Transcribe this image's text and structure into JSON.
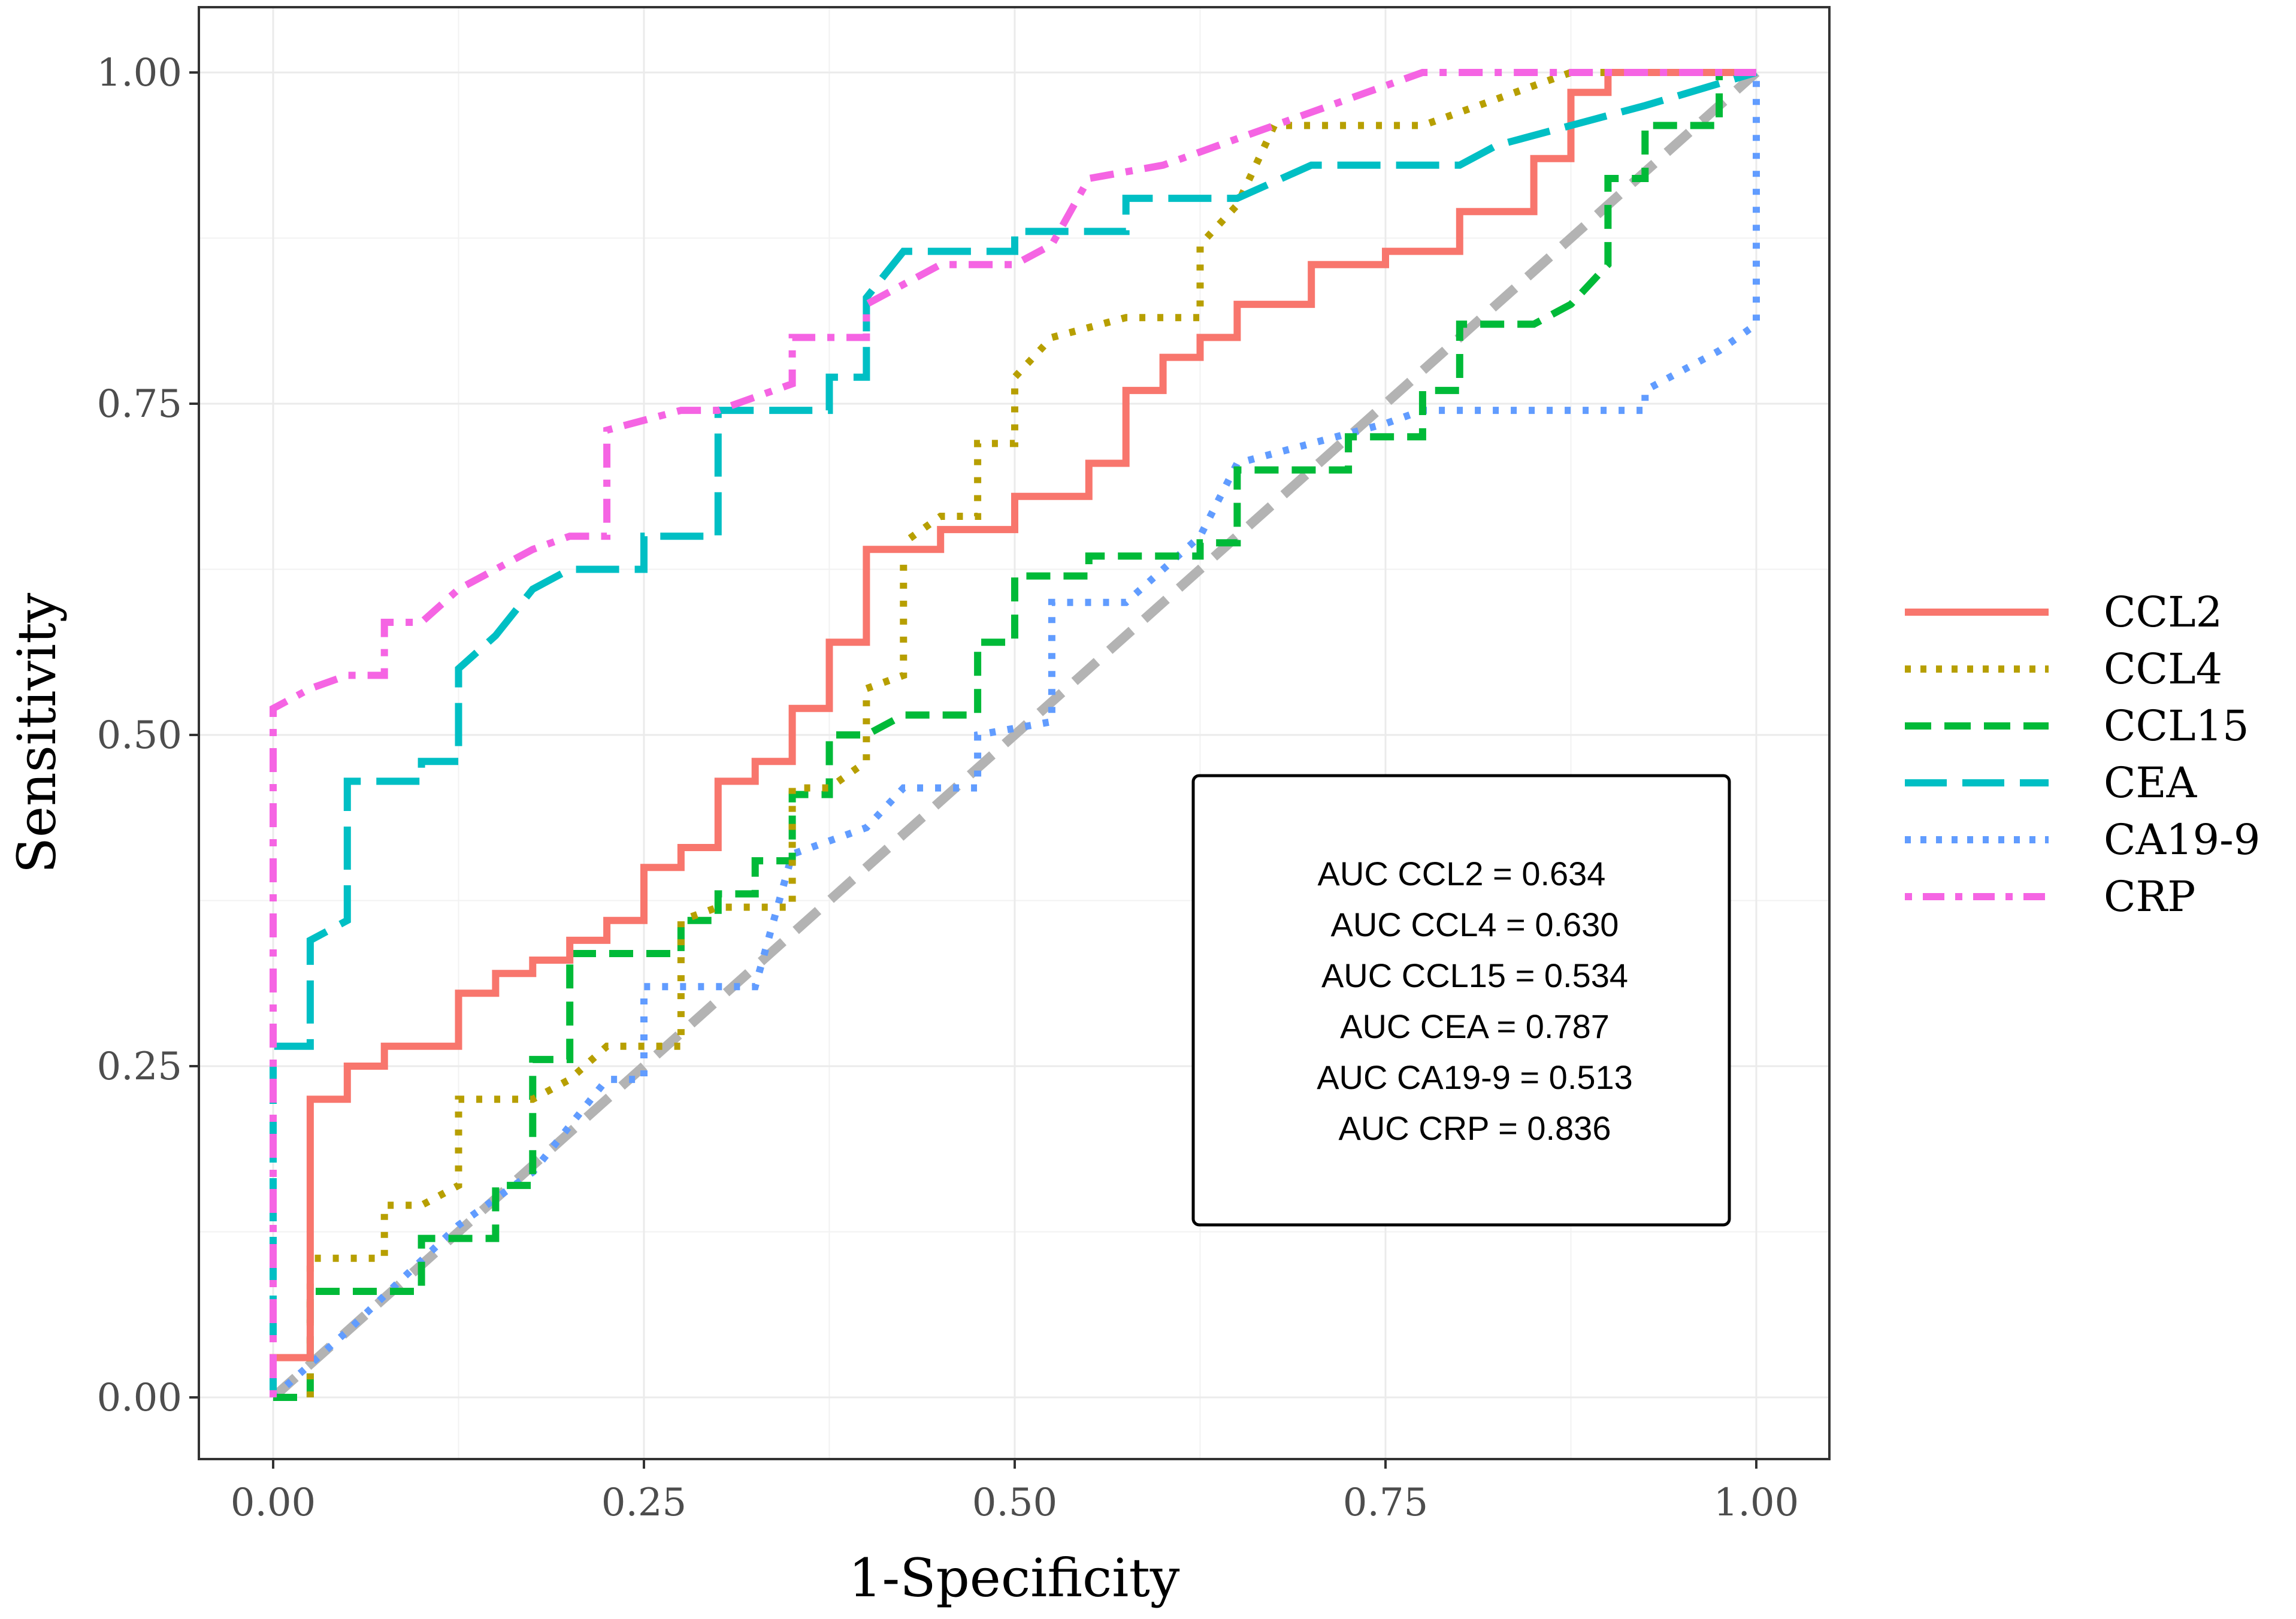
{
  "chart_data": {
    "type": "line",
    "title": "",
    "xlabel": "1-Specificity",
    "ylabel": "Sensitivity",
    "xlim": [
      -0.1,
      1.1
    ],
    "ylim": [
      -0.1,
      1.1
    ],
    "xticks": [
      0,
      0.25,
      0.5,
      0.75,
      1
    ],
    "yticks": [
      0,
      0.25,
      0.5,
      0.75,
      1
    ],
    "xtick_labels": [
      "0.00",
      "0.25",
      "0.50",
      "0.75",
      "1.00"
    ],
    "ytick_labels": [
      "0.00",
      "0.25",
      "0.50",
      "0.75",
      "1.00"
    ],
    "grid": true,
    "legend_position": "right",
    "reference_line": {
      "from": [
        0,
        0
      ],
      "to": [
        1,
        1
      ],
      "color": "#b3b3b3",
      "style": "dashed"
    },
    "series": [
      {
        "name": "CCL2",
        "color": "#F8766D",
        "style": "solid",
        "points": [
          [
            0,
            0
          ],
          [
            0,
            0.03
          ],
          [
            0.025,
            0.03
          ],
          [
            0.025,
            0.225
          ],
          [
            0.05,
            0.225
          ],
          [
            0.05,
            0.25
          ],
          [
            0.075,
            0.25
          ],
          [
            0.075,
            0.265
          ],
          [
            0.125,
            0.265
          ],
          [
            0.125,
            0.305
          ],
          [
            0.15,
            0.305
          ],
          [
            0.15,
            0.32
          ],
          [
            0.175,
            0.32
          ],
          [
            0.175,
            0.33
          ],
          [
            0.2,
            0.33
          ],
          [
            0.2,
            0.345
          ],
          [
            0.225,
            0.345
          ],
          [
            0.225,
            0.36
          ],
          [
            0.25,
            0.36
          ],
          [
            0.25,
            0.4
          ],
          [
            0.275,
            0.4
          ],
          [
            0.275,
            0.415
          ],
          [
            0.3,
            0.415
          ],
          [
            0.3,
            0.465
          ],
          [
            0.325,
            0.465
          ],
          [
            0.325,
            0.48
          ],
          [
            0.35,
            0.48
          ],
          [
            0.35,
            0.52
          ],
          [
            0.375,
            0.52
          ],
          [
            0.375,
            0.57
          ],
          [
            0.4,
            0.57
          ],
          [
            0.4,
            0.64
          ],
          [
            0.45,
            0.64
          ],
          [
            0.45,
            0.655
          ],
          [
            0.5,
            0.655
          ],
          [
            0.5,
            0.68
          ],
          [
            0.55,
            0.68
          ],
          [
            0.55,
            0.705
          ],
          [
            0.575,
            0.705
          ],
          [
            0.575,
            0.76
          ],
          [
            0.6,
            0.76
          ],
          [
            0.6,
            0.785
          ],
          [
            0.625,
            0.785
          ],
          [
            0.625,
            0.8
          ],
          [
            0.65,
            0.8
          ],
          [
            0.65,
            0.825
          ],
          [
            0.7,
            0.825
          ],
          [
            0.7,
            0.855
          ],
          [
            0.75,
            0.855
          ],
          [
            0.75,
            0.865
          ],
          [
            0.8,
            0.865
          ],
          [
            0.8,
            0.895
          ],
          [
            0.85,
            0.895
          ],
          [
            0.85,
            0.935
          ],
          [
            0.875,
            0.935
          ],
          [
            0.875,
            0.985
          ],
          [
            0.9,
            0.985
          ],
          [
            0.9,
            1
          ],
          [
            1,
            1
          ]
        ]
      },
      {
        "name": "CCL4",
        "color": "#B79F00",
        "style": "dotted",
        "points": [
          [
            0.025,
            0
          ],
          [
            0.025,
            0.105
          ],
          [
            0.075,
            0.105
          ],
          [
            0.075,
            0.145
          ],
          [
            0.1,
            0.145
          ],
          [
            0.125,
            0.16
          ],
          [
            0.125,
            0.225
          ],
          [
            0.175,
            0.225
          ],
          [
            0.2,
            0.24
          ],
          [
            0.225,
            0.265
          ],
          [
            0.275,
            0.265
          ],
          [
            0.275,
            0.36
          ],
          [
            0.3,
            0.37
          ],
          [
            0.35,
            0.37
          ],
          [
            0.35,
            0.46
          ],
          [
            0.375,
            0.46
          ],
          [
            0.4,
            0.48
          ],
          [
            0.4,
            0.535
          ],
          [
            0.425,
            0.545
          ],
          [
            0.425,
            0.645
          ],
          [
            0.45,
            0.665
          ],
          [
            0.475,
            0.665
          ],
          [
            0.475,
            0.72
          ],
          [
            0.5,
            0.72
          ],
          [
            0.5,
            0.77
          ],
          [
            0.525,
            0.8
          ],
          [
            0.575,
            0.815
          ],
          [
            0.625,
            0.815
          ],
          [
            0.625,
            0.87
          ],
          [
            0.65,
            0.9
          ],
          [
            0.675,
            0.96
          ],
          [
            0.775,
            0.96
          ],
          [
            0.875,
            1
          ],
          [
            1,
            1
          ]
        ]
      },
      {
        "name": "CCL15",
        "color": "#00BA38",
        "style": "dashed",
        "points": [
          [
            0,
            0
          ],
          [
            0.025,
            0
          ],
          [
            0.025,
            0.08
          ],
          [
            0.1,
            0.08
          ],
          [
            0.1,
            0.12
          ],
          [
            0.15,
            0.12
          ],
          [
            0.15,
            0.16
          ],
          [
            0.175,
            0.16
          ],
          [
            0.175,
            0.255
          ],
          [
            0.2,
            0.255
          ],
          [
            0.2,
            0.335
          ],
          [
            0.275,
            0.335
          ],
          [
            0.275,
            0.36
          ],
          [
            0.3,
            0.36
          ],
          [
            0.3,
            0.38
          ],
          [
            0.325,
            0.38
          ],
          [
            0.325,
            0.405
          ],
          [
            0.35,
            0.405
          ],
          [
            0.35,
            0.455
          ],
          [
            0.375,
            0.455
          ],
          [
            0.375,
            0.5
          ],
          [
            0.4,
            0.5
          ],
          [
            0.425,
            0.515
          ],
          [
            0.475,
            0.515
          ],
          [
            0.475,
            0.57
          ],
          [
            0.5,
            0.57
          ],
          [
            0.5,
            0.62
          ],
          [
            0.55,
            0.62
          ],
          [
            0.55,
            0.635
          ],
          [
            0.625,
            0.635
          ],
          [
            0.625,
            0.645
          ],
          [
            0.65,
            0.645
          ],
          [
            0.65,
            0.7
          ],
          [
            0.725,
            0.7
          ],
          [
            0.725,
            0.725
          ],
          [
            0.775,
            0.725
          ],
          [
            0.775,
            0.76
          ],
          [
            0.8,
            0.76
          ],
          [
            0.8,
            0.81
          ],
          [
            0.85,
            0.81
          ],
          [
            0.875,
            0.825
          ],
          [
            0.9,
            0.855
          ],
          [
            0.9,
            0.92
          ],
          [
            0.925,
            0.92
          ],
          [
            0.925,
            0.96
          ],
          [
            0.975,
            0.96
          ],
          [
            0.975,
            1
          ],
          [
            1,
            1
          ]
        ]
      },
      {
        "name": "CEA",
        "color": "#00BFC4",
        "style": "longdash",
        "points": [
          [
            0,
            0
          ],
          [
            0,
            0.265
          ],
          [
            0.025,
            0.265
          ],
          [
            0.025,
            0.345
          ],
          [
            0.05,
            0.36
          ],
          [
            0.05,
            0.465
          ],
          [
            0.1,
            0.465
          ],
          [
            0.1,
            0.48
          ],
          [
            0.125,
            0.48
          ],
          [
            0.125,
            0.55
          ],
          [
            0.15,
            0.575
          ],
          [
            0.175,
            0.61
          ],
          [
            0.2,
            0.625
          ],
          [
            0.25,
            0.625
          ],
          [
            0.25,
            0.65
          ],
          [
            0.3,
            0.65
          ],
          [
            0.3,
            0.745
          ],
          [
            0.375,
            0.745
          ],
          [
            0.375,
            0.77
          ],
          [
            0.4,
            0.77
          ],
          [
            0.4,
            0.83
          ],
          [
            0.425,
            0.865
          ],
          [
            0.5,
            0.865
          ],
          [
            0.5,
            0.88
          ],
          [
            0.575,
            0.88
          ],
          [
            0.575,
            0.905
          ],
          [
            0.65,
            0.905
          ],
          [
            0.7,
            0.93
          ],
          [
            0.8,
            0.93
          ],
          [
            0.825,
            0.945
          ],
          [
            0.875,
            0.96
          ],
          [
            0.925,
            0.975
          ],
          [
            1,
            1
          ]
        ]
      },
      {
        "name": "CA19-9",
        "color": "#619CFF",
        "style": "dotted",
        "points": [
          [
            0,
            0
          ],
          [
            0.05,
            0.05
          ],
          [
            0.125,
            0.13
          ],
          [
            0.175,
            0.17
          ],
          [
            0.2,
            0.205
          ],
          [
            0.225,
            0.24
          ],
          [
            0.25,
            0.24
          ],
          [
            0.25,
            0.31
          ],
          [
            0.325,
            0.31
          ],
          [
            0.35,
            0.41
          ],
          [
            0.375,
            0.42
          ],
          [
            0.4,
            0.43
          ],
          [
            0.425,
            0.46
          ],
          [
            0.475,
            0.46
          ],
          [
            0.475,
            0.5
          ],
          [
            0.525,
            0.51
          ],
          [
            0.525,
            0.6
          ],
          [
            0.575,
            0.6
          ],
          [
            0.625,
            0.65
          ],
          [
            0.65,
            0.705
          ],
          [
            0.75,
            0.735
          ],
          [
            0.775,
            0.745
          ],
          [
            0.925,
            0.745
          ],
          [
            0.925,
            0.76
          ],
          [
            0.975,
            0.79
          ],
          [
            1,
            0.81
          ],
          [
            1,
            1
          ]
        ]
      },
      {
        "name": "CRP",
        "color": "#F564E3",
        "style": "dotdash",
        "points": [
          [
            0,
            0
          ],
          [
            0,
            0.52
          ],
          [
            0.025,
            0.535
          ],
          [
            0.05,
            0.545
          ],
          [
            0.075,
            0.545
          ],
          [
            0.075,
            0.585
          ],
          [
            0.1,
            0.585
          ],
          [
            0.125,
            0.61
          ],
          [
            0.175,
            0.64
          ],
          [
            0.2,
            0.65
          ],
          [
            0.225,
            0.65
          ],
          [
            0.225,
            0.73
          ],
          [
            0.275,
            0.745
          ],
          [
            0.3,
            0.745
          ],
          [
            0.35,
            0.765
          ],
          [
            0.35,
            0.8
          ],
          [
            0.4,
            0.8
          ],
          [
            0.4,
            0.825
          ],
          [
            0.45,
            0.855
          ],
          [
            0.5,
            0.855
          ],
          [
            0.525,
            0.87
          ],
          [
            0.55,
            0.92
          ],
          [
            0.6,
            0.93
          ],
          [
            0.65,
            0.95
          ],
          [
            0.7,
            0.97
          ],
          [
            0.775,
            1
          ],
          [
            1,
            1
          ]
        ]
      }
    ],
    "annotation": {
      "lines": [
        "AUC CCL2 = 0.634",
        "AUC CCL4 = 0.630",
        "AUC CCL15 = 0.534",
        "AUC CEA = 0.787",
        "AUC CA19-9 = 0.513",
        "AUC CRP = 0.836"
      ]
    }
  }
}
